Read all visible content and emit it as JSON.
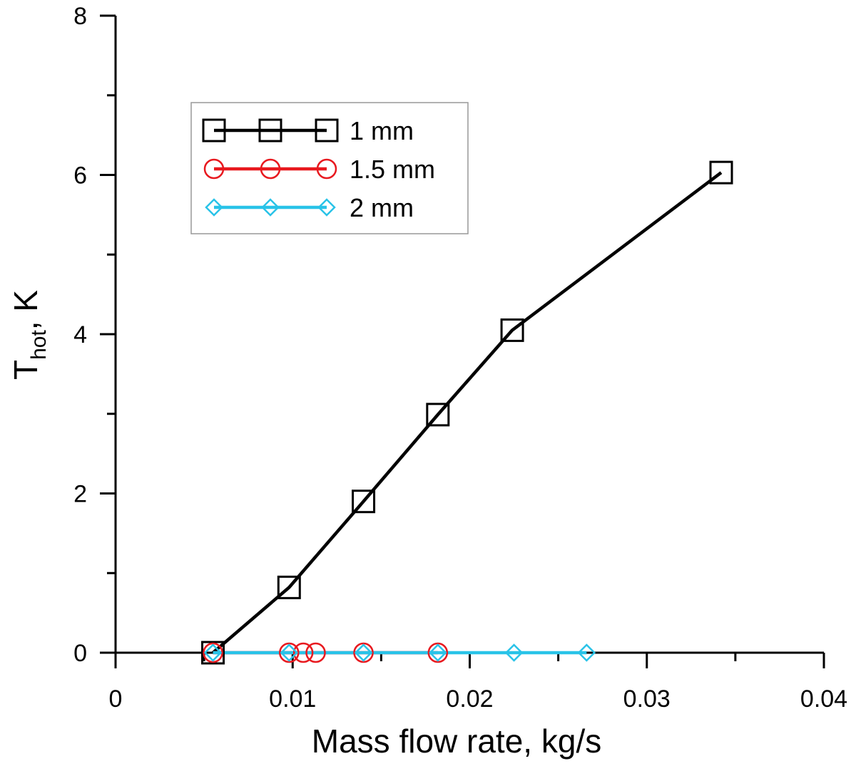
{
  "chart_data": {
    "type": "line",
    "xlabel": "Mass flow rate, kg/s",
    "ylabel": {
      "main": "T",
      "sub": "hot",
      "unit": ", K"
    },
    "xlim": [
      0,
      0.04
    ],
    "ylim": [
      0,
      8
    ],
    "x_ticks": [
      0,
      0.01,
      0.02,
      0.03,
      0.04
    ],
    "x_tick_labels": [
      "0",
      "0.01",
      "0.02",
      "0.03",
      "0.04"
    ],
    "y_ticks": [
      0,
      2,
      4,
      6,
      8
    ],
    "y_tick_labels": [
      "0",
      "2",
      "4",
      "6",
      "8"
    ],
    "grid": false,
    "legend_position": "top-left",
    "series": [
      {
        "name": "1 mm",
        "color": "#000000",
        "marker": "square",
        "x": [
          0.0055,
          0.0098,
          0.014,
          0.0182,
          0.0224,
          0.0342
        ],
        "y": [
          0.0,
          0.82,
          1.9,
          2.99,
          4.05,
          6.03
        ]
      },
      {
        "name": "1.5 mm",
        "color": "#e8191f",
        "marker": "circle",
        "x": [
          0.0055,
          0.0098,
          0.0106,
          0.0113,
          0.014,
          0.0182
        ],
        "y": [
          0,
          0,
          0,
          0,
          0,
          0
        ]
      },
      {
        "name": "2 mm",
        "color": "#29c3e8",
        "marker": "diamond",
        "x": [
          0.0055,
          0.0098,
          0.014,
          0.0182,
          0.0225,
          0.0266
        ],
        "y": [
          0,
          0,
          0,
          0,
          0,
          0
        ]
      }
    ]
  }
}
